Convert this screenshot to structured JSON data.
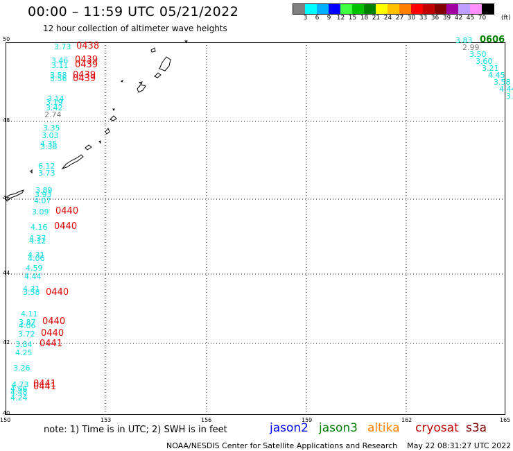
{
  "header": {
    "title": "00:00 – 11:59 UTC 05/21/2022",
    "subtitle": "12 hour collection of altimeter wave heights"
  },
  "colorbar": {
    "colors": [
      "#808080",
      "#00ffff",
      "#00b0ff",
      "#0000ff",
      "#40ff40",
      "#00c000",
      "#008000",
      "#ffff00",
      "#ffc000",
      "#ff8000",
      "#ff0000",
      "#c00000",
      "#800000",
      "#a000a0",
      "#c0a0ff",
      "#ff90ff",
      "#000000"
    ],
    "ticks": [
      "3",
      "6",
      "9",
      "12",
      "15",
      "18",
      "21",
      "24",
      "27",
      "30",
      "33",
      "36",
      "39",
      "42",
      "45",
      "70"
    ],
    "unit": "(ft)"
  },
  "axes": {
    "y_ticks": [
      "50",
      "48",
      "46",
      "44",
      "42",
      "40"
    ],
    "x_ticks": [
      "150",
      "153",
      "156",
      "159",
      "162",
      "165"
    ]
  },
  "labels": {
    "wave_heights": [
      "3.73",
      "3.46",
      "3.11",
      "3.58",
      "3.56",
      "3.14",
      "3.19",
      "3.42",
      "2.74",
      "3.35",
      "3.03",
      "4.35",
      "3.36",
      "6.12",
      "3.73",
      "3.89",
      "3.93",
      "4.07",
      "3.09",
      "4.16",
      "4.37",
      "4.12",
      "4.31",
      "4.06",
      "4.59",
      "4.44",
      "4.31",
      "3.58",
      "4.11",
      "3.87",
      "4.06",
      "3.72",
      "3.84",
      "4.25",
      "3.26",
      "4.73",
      "4.66",
      "4.48",
      "4.24",
      "3.83",
      "2.99",
      "3.50",
      "3.60",
      "3.21",
      "4.45",
      "3.58",
      "4.44",
      "3.3"
    ],
    "times": [
      "0438",
      "0439",
      "0439",
      "0439",
      "0439",
      "0440",
      "0440",
      "0440",
      "0440",
      "0440",
      "0441",
      "0441",
      "0441",
      "0606"
    ]
  },
  "legend": {
    "note": "note: 1) Time is in UTC; 2) SWH is in feet",
    "satellites": [
      {
        "name": "jason2",
        "color": "#0000ff"
      },
      {
        "name": "jason3",
        "color": "#008000"
      },
      {
        "name": "altika",
        "color": "#ff8000"
      },
      {
        "name": "cryosat",
        "color": "#c00000"
      },
      {
        "name": "s3a",
        "color": "#800000"
      }
    ]
  },
  "footer": {
    "credit": "NOAA/NESDIS Center for Satellite Applications and Research",
    "generated": "May 22 08:31:27 UTC 2022"
  }
}
